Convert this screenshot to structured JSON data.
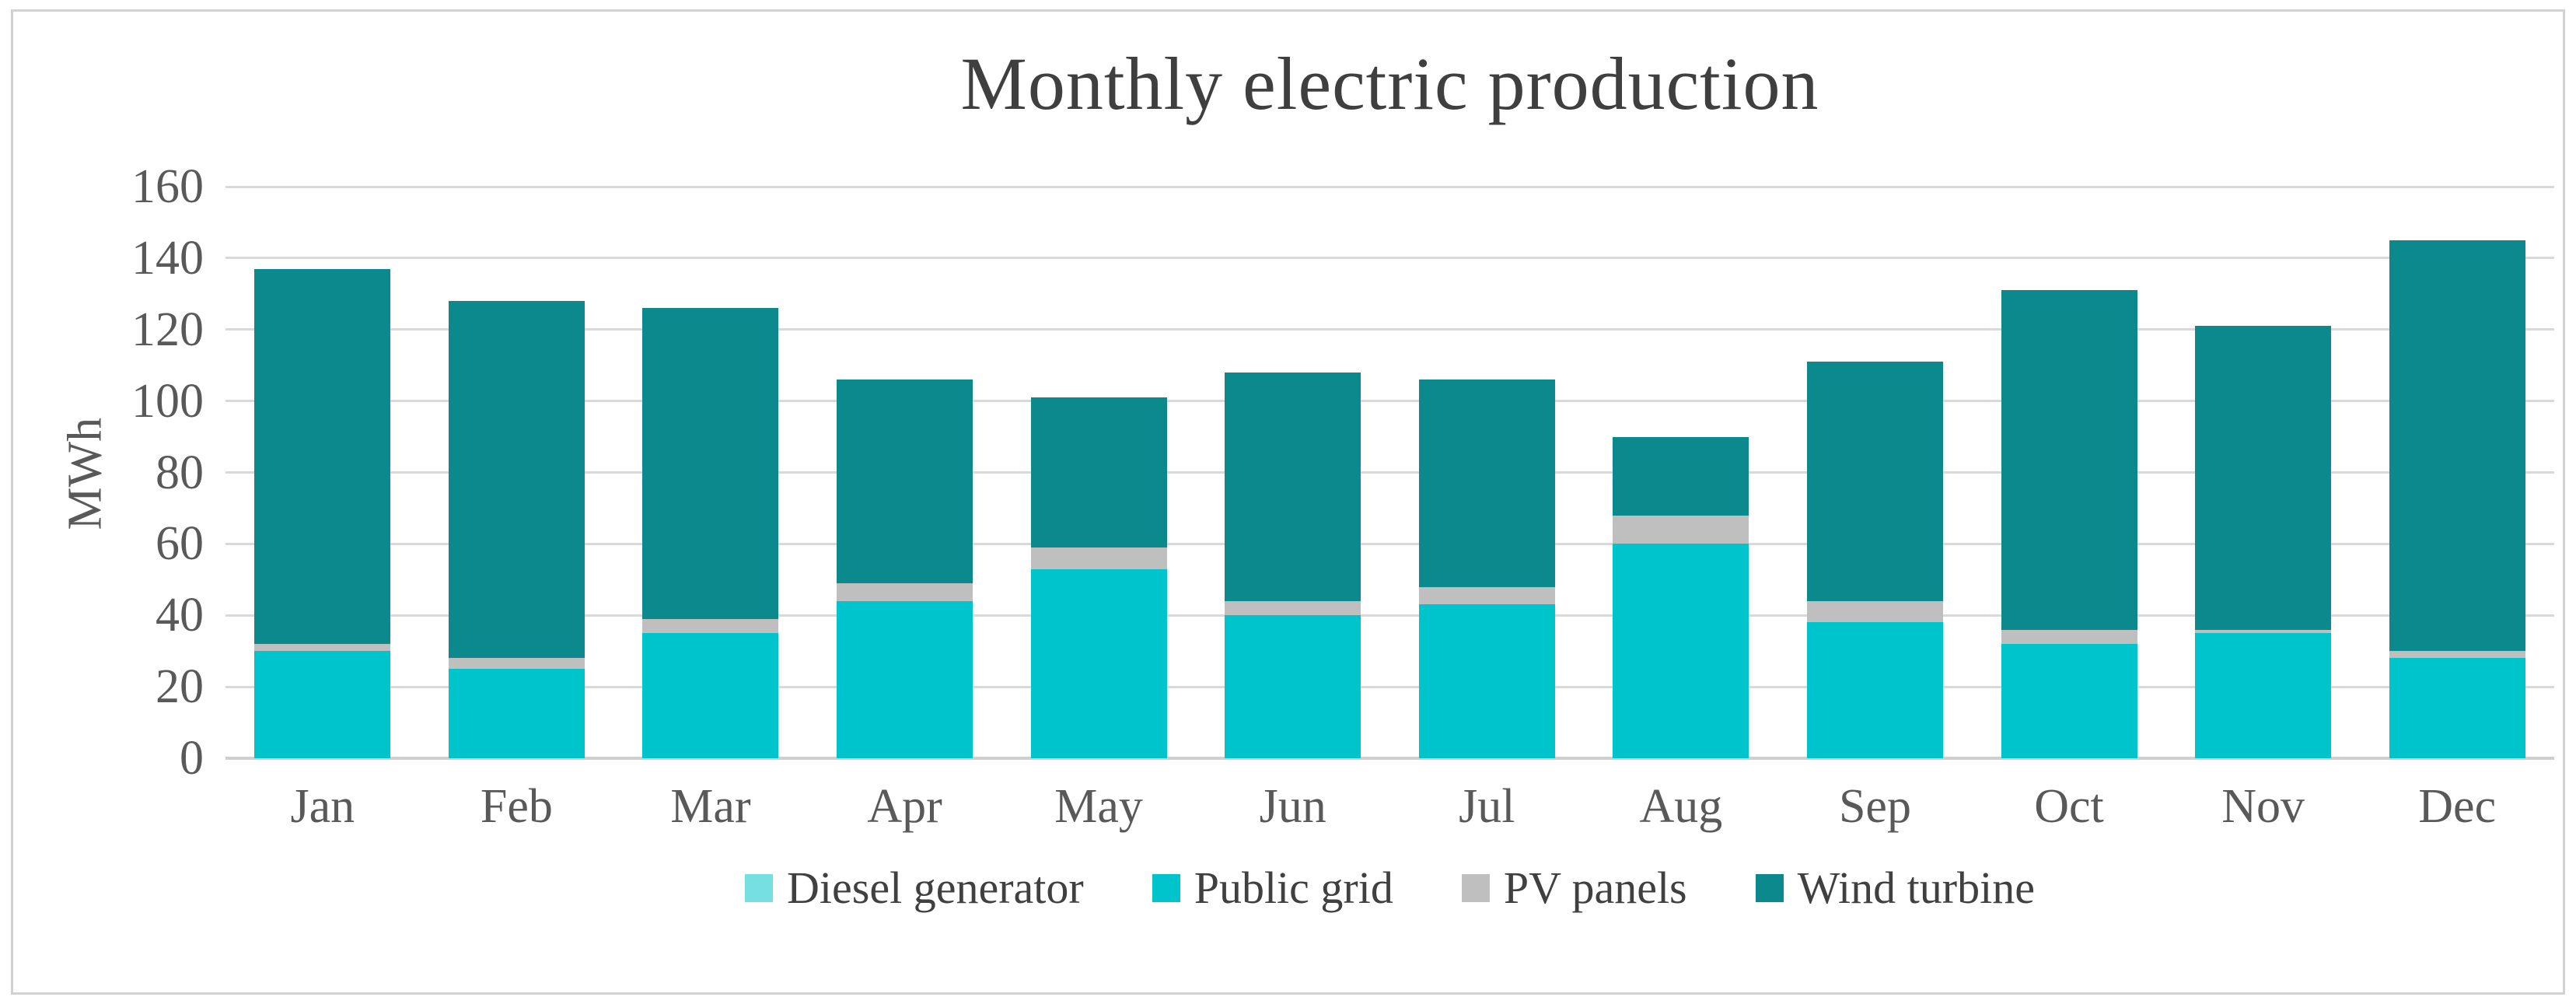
{
  "title": "Monthly electric production",
  "y_axis": {
    "label": "MWh"
  },
  "colors": {
    "gridline": "#d9d9d9",
    "axis_line": "#cfcfcf",
    "title_text": "#3f3f3f",
    "axis_text": "#595959",
    "legend_text": "#404040",
    "frame_border": "#d2d2d2"
  },
  "chart_data": {
    "type": "bar",
    "stacked": true,
    "title": "Monthly electric production",
    "xlabel": "",
    "ylabel": "MWh",
    "ylim": [
      0,
      160
    ],
    "ytick_step": 20,
    "ytick_labels": [
      "0",
      "20",
      "40",
      "60",
      "80",
      "100",
      "120",
      "140",
      "160"
    ],
    "grid": true,
    "legend_position": "bottom",
    "categories": [
      "Jan",
      "Feb",
      "Mar",
      "Apr",
      "May",
      "Jun",
      "Jul",
      "Aug",
      "Sep",
      "Oct",
      "Nov",
      "Dec"
    ],
    "series": [
      {
        "name": "Diesel generator",
        "color": "#76dfe1",
        "values": [
          0,
          0,
          0,
          0,
          0,
          0,
          0,
          0,
          0,
          0,
          0,
          0
        ]
      },
      {
        "name": "Public grid",
        "color": "#00c4cc",
        "values": [
          30,
          25,
          35,
          44,
          53,
          40,
          43,
          60,
          38,
          32,
          35,
          28
        ]
      },
      {
        "name": "PV panels",
        "color": "#bfbfbf",
        "values": [
          2,
          3,
          4,
          5,
          6,
          4,
          5,
          8,
          6,
          4,
          1,
          2
        ]
      },
      {
        "name": "Wind turbine",
        "color": "#0b898d",
        "values": [
          105,
          100,
          87,
          57,
          42,
          64,
          58,
          22,
          67,
          95,
          85,
          115
        ]
      }
    ],
    "totals": [
      137,
      128,
      126,
      106,
      101,
      108,
      106,
      90,
      111,
      131,
      121,
      145
    ]
  }
}
